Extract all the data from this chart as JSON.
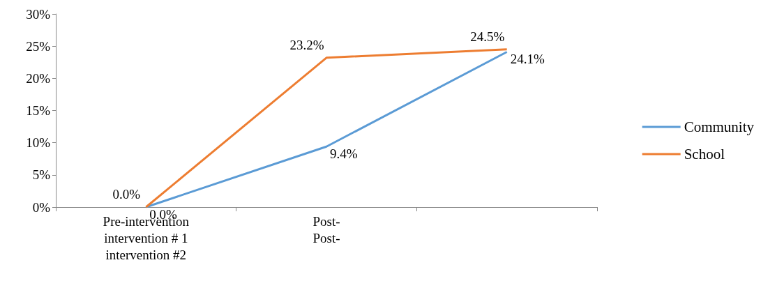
{
  "chart_data": {
    "type": "line",
    "categories": [
      "Pre-intervention\nintervention # 1\nintervention #2",
      "Post-\nPost-",
      null
    ],
    "series": [
      {
        "name": "Community",
        "color": "#5b9bd5",
        "values": [
          0,
          9.4,
          24.1
        ],
        "value_labels": [
          "0.0%",
          "9.4%",
          "24.1%"
        ]
      },
      {
        "name": "School",
        "color": "#ed7d31",
        "values": [
          0,
          23.2,
          24.5
        ],
        "value_labels": [
          "0.0%",
          "23.2%",
          "24.5%"
        ]
      }
    ],
    "ylim": [
      0,
      30
    ],
    "yticks": [
      {
        "value": 0,
        "label": "0%"
      },
      {
        "value": 5,
        "label": "5%"
      },
      {
        "value": 10,
        "label": "10%"
      },
      {
        "value": 15,
        "label": "15%"
      },
      {
        "value": 20,
        "label": "20%"
      },
      {
        "value": 25,
        "label": "25%"
      },
      {
        "value": 30,
        "label": "30%"
      }
    ],
    "grid": false,
    "legend": "right",
    "marker": "none",
    "line_style": "solid"
  }
}
